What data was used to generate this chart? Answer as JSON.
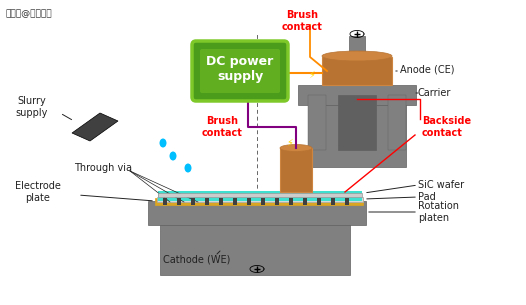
{
  "title": "",
  "watermark": "搜狐号@华祎科削",
  "bg_color": "#ffffff",
  "labels": {
    "brush_contact_top": "Brush\ncontact",
    "anode": "Anode (CE)",
    "carrier": "Carrier",
    "brush_contact_mid": "Brush\ncontact",
    "backside_contact": "Backside\ncontact",
    "sic_wafer": "SiC wafer",
    "pad": "Pad",
    "rotation_platen": "Rotation\nplaten",
    "slurry_supply": "Slurry\nsupply",
    "through_via": "Through via",
    "electrode_plate": "Electrode\nplate",
    "cathode": "Cathode (WE)",
    "dc_power": "DC power\nsupply"
  },
  "colors": {
    "gray_machine": "#808080",
    "gray_dark": "#606060",
    "copper": "#b87333",
    "copper_light": "#cd853f",
    "teal_liquid": "#40e0d0",
    "orange_wire": "#ff8c00",
    "purple_wire": "#800080",
    "green_dc": "#4a9c1a",
    "green_dc_light": "#7ec82a",
    "yellow_bolt": "#ffd700",
    "gold_strip": "#daa520",
    "white": "#ffffff",
    "black": "#000000",
    "blue_drops": "#00bfff",
    "dark_gray_tool": "#404040"
  }
}
